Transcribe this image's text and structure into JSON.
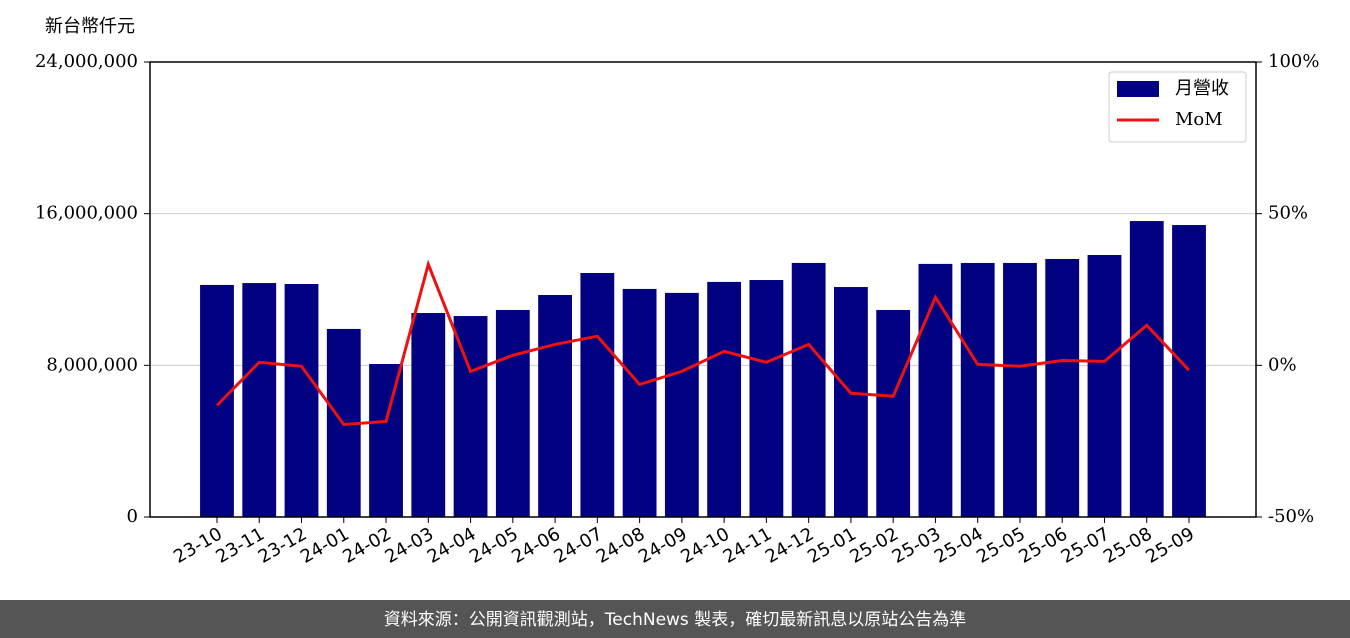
{
  "chart_data": {
    "type": "bar",
    "ylabel": "新台幣仟元",
    "categories": [
      "23-10",
      "23-11",
      "23-12",
      "24-01",
      "24-02",
      "24-03",
      "24-04",
      "24-05",
      "24-06",
      "24-07",
      "24-08",
      "24-09",
      "24-10",
      "24-11",
      "24-12",
      "25-01",
      "25-02",
      "25-03",
      "25-04",
      "25-05",
      "25-06",
      "25-07",
      "25-08",
      "25-09"
    ],
    "series": [
      {
        "name": "月營收",
        "type": "bar",
        "color": "#000080",
        "values": [
          12240000,
          12340000,
          12290000,
          9920000,
          8070000,
          10760000,
          10600000,
          10920000,
          11710000,
          12870000,
          12030000,
          11820000,
          12400000,
          12500000,
          13400000,
          12130000,
          10920000,
          13350000,
          13400000,
          13400000,
          13610000,
          13820000,
          15610000,
          15400000
        ]
      },
      {
        "name": "MoM",
        "type": "line",
        "axis": "y2",
        "color": "#ee1111",
        "values": [
          -13.2,
          1.0,
          -0.3,
          -19.5,
          -18.5,
          33.3,
          -2.0,
          3.3,
          6.9,
          9.6,
          -6.3,
          -2.0,
          4.6,
          1.0,
          6.9,
          -9.2,
          -10.2,
          22.4,
          0.3,
          -0.3,
          1.6,
          1.3,
          13.2,
          -1.6
        ]
      }
    ],
    "ylim": [
      0,
      24000000
    ],
    "yticks": [
      0,
      {
        "value": 8000000,
        "label": "8,000,000"
      },
      {
        "value": 16000000,
        "label": "16,000,000"
      },
      {
        "value": 24000000,
        "label": "24,000,000"
      }
    ],
    "y2lim": [
      -50,
      100
    ],
    "y2ticks": [
      {
        "value": -50,
        "label": "-50%"
      },
      {
        "value": 0,
        "label": "0%"
      },
      {
        "value": 50,
        "label": "50%"
      },
      {
        "value": 100,
        "label": "100%"
      }
    ],
    "grid": true,
    "legend": "upper right",
    "footer": "資料來源：公開資訊觀測站，TechNews 製表，確切最新訊息以原站公告為準"
  }
}
